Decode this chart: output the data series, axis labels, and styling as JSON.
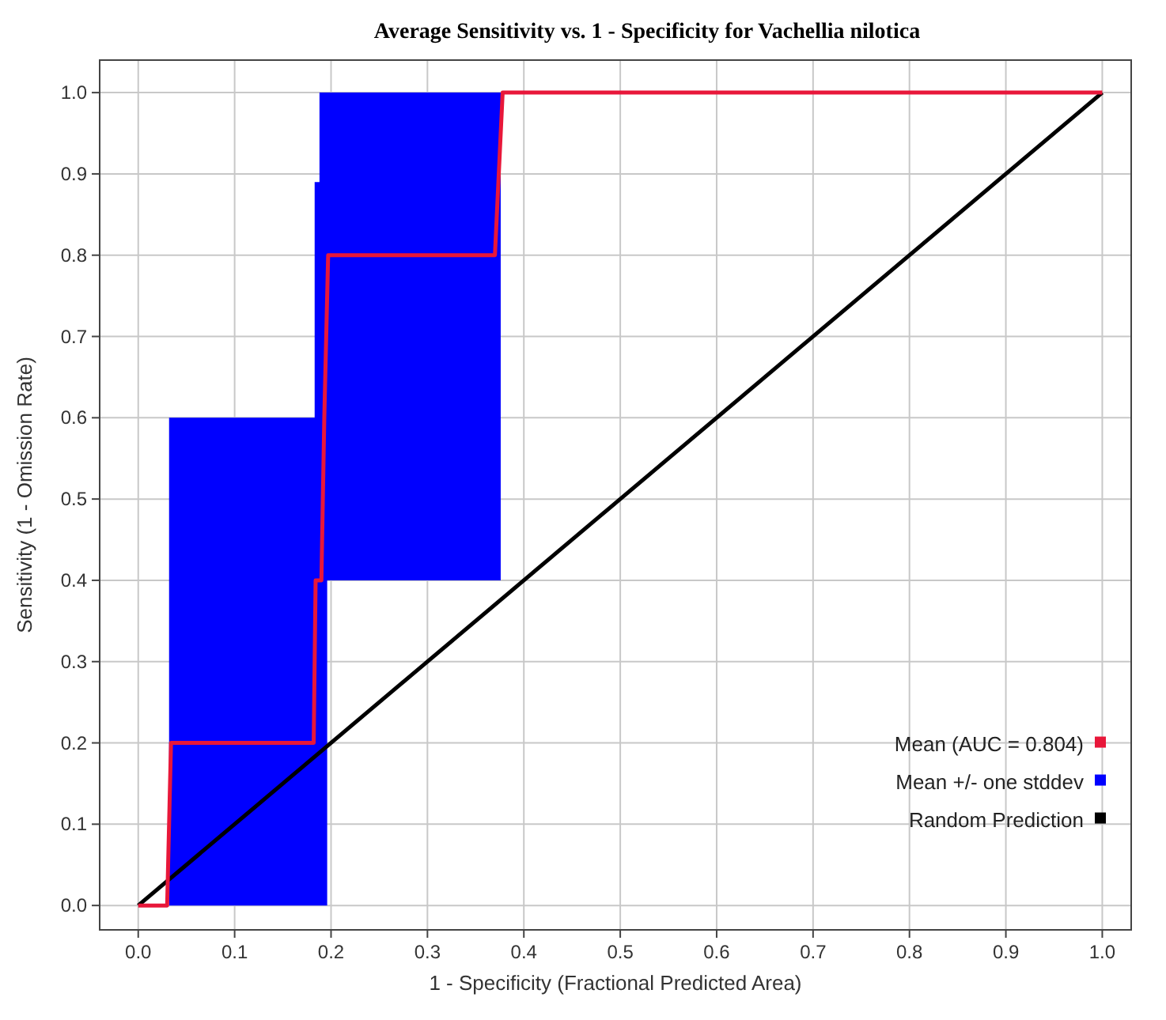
{
  "chart_data": {
    "type": "line",
    "title": "Average Sensitivity vs. 1 - Specificity for Vachellia nilotica",
    "xlabel": "1 - Specificity (Fractional Predicted Area)",
    "ylabel": "Sensitivity (1 - Omission Rate)",
    "xlim": [
      -0.04,
      1.03
    ],
    "ylim": [
      -0.03,
      1.04
    ],
    "xticks": [
      {
        "value": 0,
        "label": "0.0"
      },
      {
        "value": 0.1,
        "label": "0.1"
      },
      {
        "value": 0.2,
        "label": "0.2"
      },
      {
        "value": 0.3,
        "label": "0.3"
      },
      {
        "value": 0.4,
        "label": "0.4"
      },
      {
        "value": 0.5,
        "label": "0.5"
      },
      {
        "value": 0.6,
        "label": "0.6"
      },
      {
        "value": 0.7,
        "label": "0.7"
      },
      {
        "value": 0.8,
        "label": "0.8"
      },
      {
        "value": 0.9,
        "label": "0.9"
      },
      {
        "value": 1,
        "label": "1.0"
      }
    ],
    "yticks": [
      {
        "value": 0,
        "label": "0.0"
      },
      {
        "value": 0.1,
        "label": "0.1"
      },
      {
        "value": 0.2,
        "label": "0.2"
      },
      {
        "value": 0.3,
        "label": "0.3"
      },
      {
        "value": 0.4,
        "label": "0.4"
      },
      {
        "value": 0.5,
        "label": "0.5"
      },
      {
        "value": 0.6,
        "label": "0.6"
      },
      {
        "value": 0.7,
        "label": "0.7"
      },
      {
        "value": 0.8,
        "label": "0.8"
      },
      {
        "value": 0.9,
        "label": "0.9"
      },
      {
        "value": 1,
        "label": "1.0"
      }
    ],
    "grid": true,
    "legend": "bottom right",
    "marker": "none",
    "line_style": "solid",
    "series": [
      {
        "name": "Mean (AUC = 0.804)",
        "color": "#e8173a",
        "x": [
          0,
          0.03,
          0.034,
          0.182,
          0.184,
          0.19,
          0.193,
          0.197,
          0.37,
          0.378,
          1
        ],
        "values": [
          0,
          0,
          0.2,
          0.2,
          0.4,
          0.4,
          0.6,
          0.8,
          0.8,
          1,
          1
        ]
      },
      {
        "name": "Mean +/- one stddev",
        "type": "area",
        "color": "#0000ff",
        "x": [
          0.032,
          0.183,
          0.183,
          0.188,
          0.188,
          0.196,
          0.196,
          0.376
        ],
        "values": [
          null,
          null,
          null,
          null,
          null,
          null,
          null,
          null
        ],
        "lower": [
          0,
          0,
          0,
          0,
          0,
          0,
          0.4,
          0.4
        ],
        "upper": [
          0.6,
          0.6,
          0.89,
          0.89,
          1,
          1,
          1,
          1
        ]
      },
      {
        "name": "Random Prediction",
        "color": "#000000",
        "x": [
          0,
          1
        ],
        "values": [
          0,
          1
        ]
      }
    ]
  }
}
